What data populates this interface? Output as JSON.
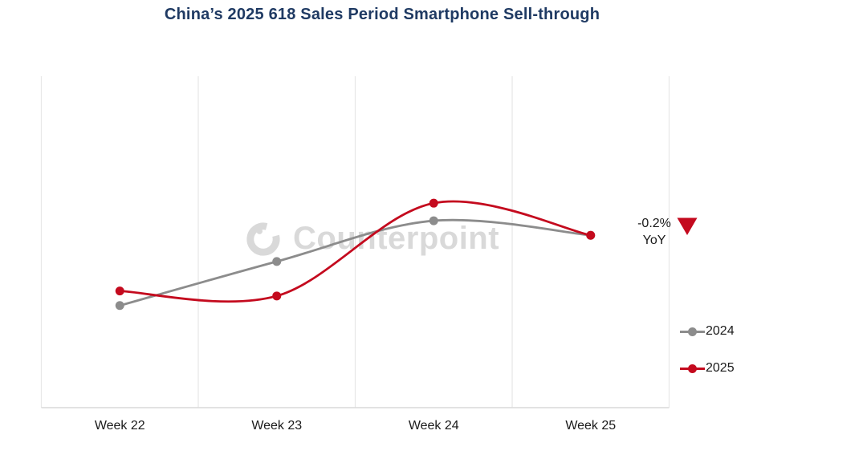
{
  "title": "China’s 2025 618 Sales Period Smartphone Sell-through",
  "watermark": {
    "text": "Counterpoint"
  },
  "annotation": {
    "line1": "-0.2%",
    "line2": "YoY",
    "direction": "down"
  },
  "chart_data": {
    "type": "line",
    "title": "China’s 2025 618 Sales Period Smartphone Sell-through",
    "categories": [
      "Week 22",
      "Week 23",
      "Week 24",
      "Week 25"
    ],
    "series": [
      {
        "name": "2024",
        "color": "#8C8C8C",
        "values": [
          30.8,
          44.1,
          56.4,
          52.0
        ]
      },
      {
        "name": "2025",
        "color": "#C40A1E",
        "values": [
          35.2,
          33.7,
          61.7,
          52.0
        ]
      }
    ],
    "xlabel": "",
    "ylabel": "",
    "ylim": [
      0,
      100
    ],
    "y_axis": "unlabeled (values are relative sell-through index estimated from pixels)",
    "grid": "vertical-only",
    "legend_position": "right",
    "annotation": "-0.2% YoY"
  },
  "colors": {
    "title": "#1F3A63",
    "red": "#C40A1E",
    "gray": "#8C8C8C",
    "gridline": "#E8E8E8",
    "axis_line": "#D9D9D9",
    "watermark": "#D9D9D9",
    "text": "#1A1A1A",
    "background": "#FFFFFF"
  }
}
